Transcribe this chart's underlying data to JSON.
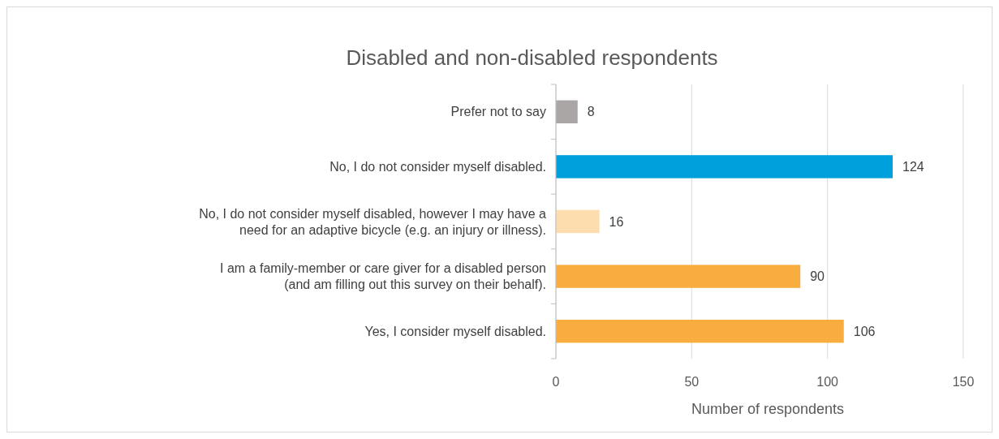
{
  "chart_data": {
    "type": "bar",
    "orientation": "horizontal",
    "title": "Disabled and non-disabled respondents",
    "xlabel": "Number of respondents",
    "categories": [
      "Prefer not to say",
      "No, I do not consider myself disabled.",
      "No, I do not consider myself disabled, however I may have a need for an adaptive bicycle (e.g. an injury or illness).",
      "I am a family-member or care giver for a disabled person (and am filling out this survey on their behalf).",
      "Yes, I consider myself disabled."
    ],
    "values": [
      8,
      124,
      16,
      90,
      106
    ],
    "colors": [
      "#aba6a6",
      "#00a0dc",
      "#fddcae",
      "#f9ad3f",
      "#f9ad3f"
    ],
    "xlim": [
      0,
      150
    ],
    "xticks": [
      0,
      50,
      100,
      150
    ],
    "grid": "x",
    "data_labels": true
  }
}
